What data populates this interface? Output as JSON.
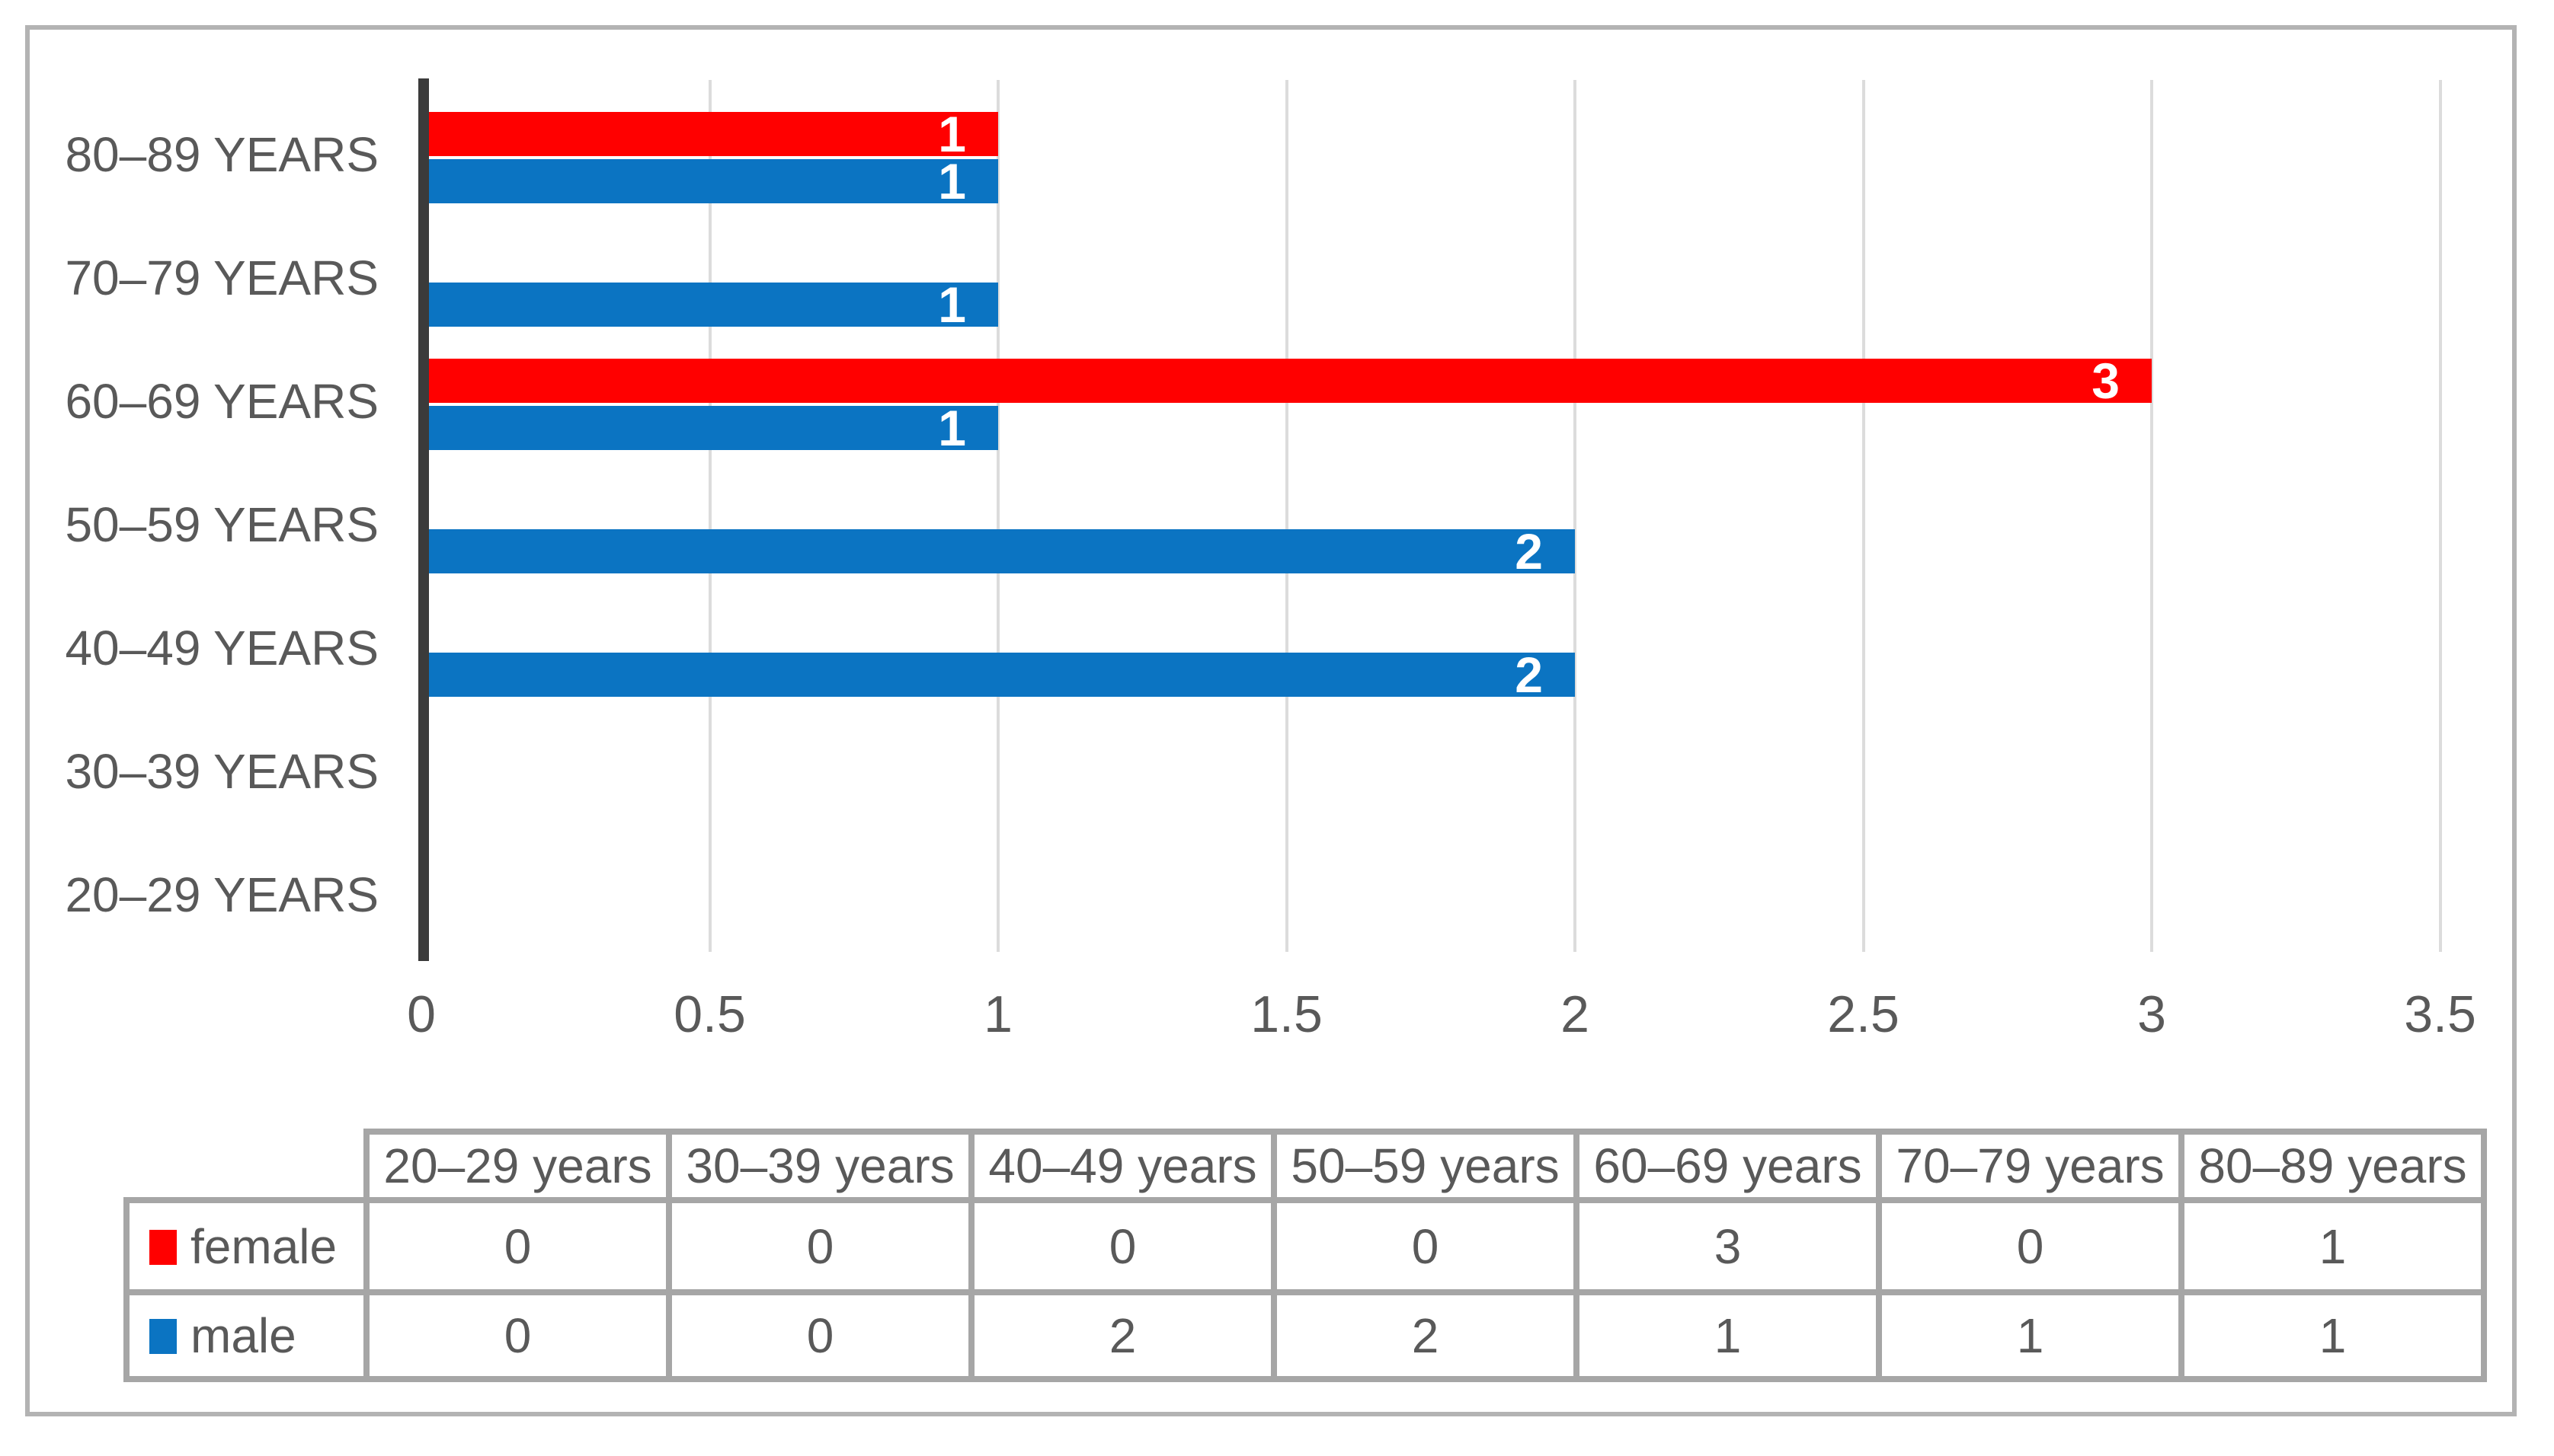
{
  "figure": {
    "background": "#ffffff",
    "frame_border_color": "#b3b3b3"
  },
  "chart_data": {
    "type": "bar",
    "orientation": "horizontal",
    "title": "",
    "categories": [
      "20–29 years",
      "30–39 years",
      "40–49 years",
      "50–59 years",
      "60–69 years",
      "70–79 years",
      "80–89 years"
    ],
    "axis_category_labels_top_to_bottom": [
      "80–89 YEARS",
      "70–79 YEARS",
      "60–69 YEARS",
      "50–59 YEARS",
      "40–49 YEARS",
      "30–39 YEARS",
      "20–29 YEARS"
    ],
    "series": [
      {
        "name": "female",
        "color": "#ff0000",
        "values": [
          0,
          0,
          0,
          0,
          3,
          0,
          1
        ]
      },
      {
        "name": "male",
        "color": "#0b74c2",
        "values": [
          0,
          0,
          2,
          2,
          1,
          1,
          1
        ]
      }
    ],
    "x_axis": {
      "min": 0,
      "max": 3.5,
      "tick_step": 0.5,
      "tick_labels": [
        "0",
        "0.5",
        "1",
        "1.5",
        "2",
        "2.5",
        "3",
        "3.5"
      ]
    },
    "grid": true,
    "bar_value_labels": {
      "color": "#ffffff",
      "show_zero": false
    },
    "legend_position": "data-table-left-column",
    "colors": {
      "gridline": "#dcdcdc",
      "axis_line": "#3b3b3b",
      "label_text": "#595959",
      "table_border": "#a6a6a6"
    }
  }
}
